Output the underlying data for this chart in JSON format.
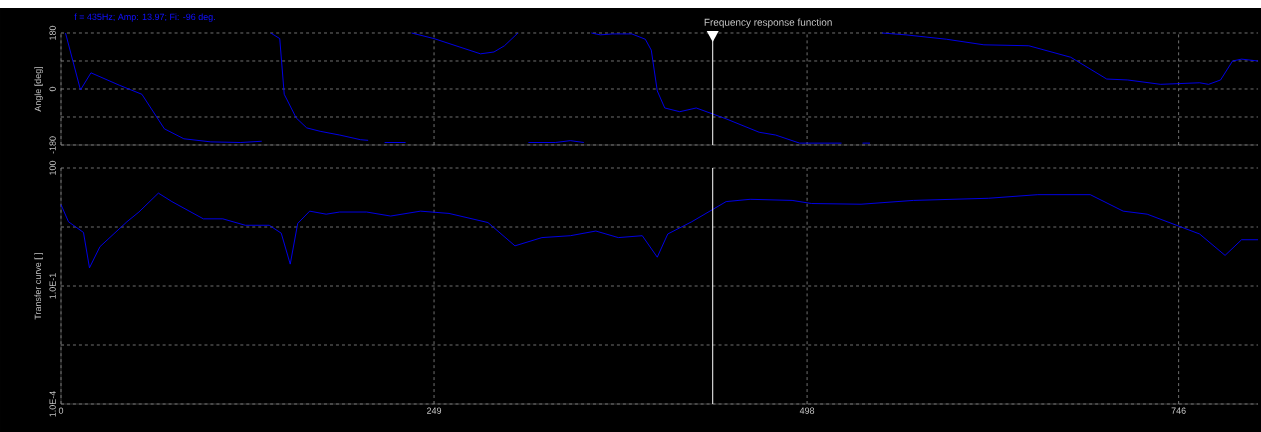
{
  "chart_data": [
    {
      "type": "line",
      "title": "Frequency response function",
      "ylabel": "Angle [deg]",
      "annotations": [
        "f = 435Hz; Amp: 13.97; Fi: -96 deg."
      ],
      "x": [
        3,
        13,
        20,
        39,
        54,
        69,
        82,
        100,
        120,
        134,
        137,
        140,
        146,
        149,
        157,
        164,
        173,
        186,
        200,
        205,
        210,
        216,
        230,
        232,
        234,
        249,
        280,
        289,
        296,
        305,
        308,
        312,
        330,
        340,
        349,
        351,
        354,
        360,
        368,
        381,
        390,
        394,
        398,
        403,
        413,
        424,
        444,
        466,
        477,
        493,
        521,
        530,
        535,
        540,
        544,
        548,
        564,
        591,
        616,
        646,
        674,
        698,
        712,
        734,
        760,
        766,
        774,
        782,
        788,
        799
      ],
      "series": [
        {
          "color": "#0000ff",
          "values": [
            180,
            -3,
            52,
            12,
            -17,
            -128,
            -160,
            -170,
            -172,
            -168,
            null,
            180,
            162,
            -17,
            -93,
            -125,
            -136,
            -148,
            -163,
            -165,
            null,
            -172,
            -172,
            null,
            180,
            162,
            113,
            119,
            139,
            180,
            null,
            -172,
            -172,
            -166,
            -172,
            null,
            180,
            174,
            177,
            177,
            160,
            125,
            -6,
            -61,
            -73,
            -61,
            -96,
            -139,
            -148,
            -174,
            -174,
            null,
            -174,
            -174,
            null,
            180,
            174,
            160,
            142,
            139,
            102,
            32,
            29,
            15,
            20,
            15,
            29,
            90,
            96,
            90
          ]
        }
      ],
      "xlim": [
        0,
        799
      ],
      "xticks": [
        0,
        249,
        498,
        746
      ],
      "ylim": [
        -180,
        180
      ],
      "yticks": [
        180,
        {
          "value": 90,
          "label": null
        },
        0,
        {
          "value": -90,
          "label": null
        },
        -180
      ],
      "tick_labels": "y",
      "grid": true,
      "ref_lines": [
        {
          "axis": "x",
          "value": 435,
          "color": "#ffffff"
        }
      ]
    },
    {
      "type": "line",
      "ylabel": "Transfer curve [ ]",
      "x": [
        0,
        5,
        15,
        19,
        26,
        44,
        52,
        65,
        74,
        95,
        108,
        123,
        139,
        147,
        153,
        158,
        166,
        177,
        186,
        204,
        220,
        240,
        259,
        285,
        303,
        321,
        340,
        357,
        372,
        388,
        398,
        405,
        421,
        444,
        460,
        488,
        501,
        534,
        569,
        619,
        652,
        687,
        709,
        725,
        760,
        777,
        788,
        799
      ],
      "series": [
        {
          "color": "#0000ff",
          "values": [
            11.7,
            4.3,
            2.3,
            0.29,
            1,
            4.3,
            7.6,
            23,
            14,
            5.1,
            5.1,
            3.5,
            3.5,
            2.2,
            0.36,
            3.9,
            8,
            6.7,
            7.6,
            7.6,
            6,
            8,
            7,
            4.1,
            1.05,
            1.7,
            1.9,
            2.5,
            1.7,
            1.9,
            0.54,
            2.1,
            4.3,
            14,
            16,
            15,
            12.5,
            12,
            15,
            17,
            21,
            21,
            8,
            6.7,
            2.1,
            0.6,
            1.5,
            1.5
          ]
        }
      ],
      "xlim": [
        0,
        799
      ],
      "xticks": [
        0,
        249,
        498,
        746
      ],
      "ylim": [
        0.0001,
        100
      ],
      "log": true,
      "yticks": [
        100,
        {
          "value": 3.162,
          "label": null
        },
        {
          "value": 0.1,
          "label": "1.0E-1"
        },
        {
          "value": 0.003162,
          "label": null
        },
        {
          "value": 0.0001,
          "label": "1.0E-4"
        }
      ],
      "grid": true,
      "ref_lines": [
        {
          "axis": "x",
          "value": 435,
          "color": "#ffffff"
        }
      ]
    }
  ]
}
